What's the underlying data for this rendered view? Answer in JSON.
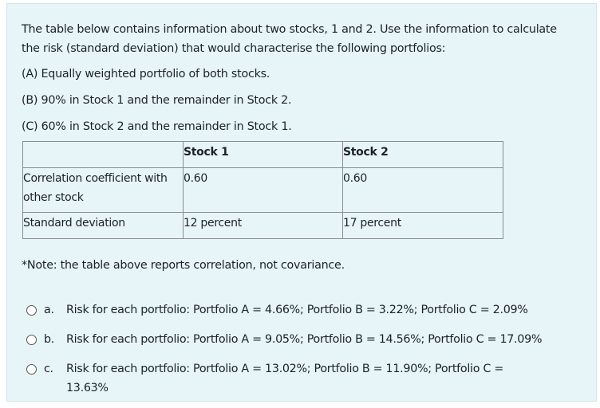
{
  "question": {
    "intro": "The table below contains information about two stocks, 1 and 2. Use the information to calculate the risk (standard deviation) that would characterise the following portfolios:",
    "items": [
      "(A) Equally weighted portfolio of both stocks.",
      "(B) 90% in Stock 1 and the remainder in Stock 2.",
      "(C) 60% in Stock 2 and the remainder in Stock 1."
    ]
  },
  "table": {
    "headers": [
      "",
      "Stock 1",
      "Stock 2"
    ],
    "rows": [
      [
        "Correlation coefficient with other stock",
        "0.60",
        "0.60"
      ],
      [
        "Standard deviation",
        "12 percent",
        "17 percent"
      ]
    ]
  },
  "note": "*Note: the table above reports correlation, not covariance.",
  "options": [
    {
      "letter": "a.",
      "text": "Risk for each portfolio: Portfolio A = 4.66%; Portfolio B = 3.22%; Portfolio C = 2.09%",
      "selected": false
    },
    {
      "letter": "b.",
      "text": "Risk for each portfolio: Portfolio A = 9.05%; Portfolio B = 14.56%; Portfolio C = 17.09%",
      "selected": false
    },
    {
      "letter": "c.",
      "text": "Risk for each portfolio: Portfolio A = 13.02%; Portfolio B = 11.90%; Portfolio C = 13.63%",
      "selected": false
    }
  ]
}
